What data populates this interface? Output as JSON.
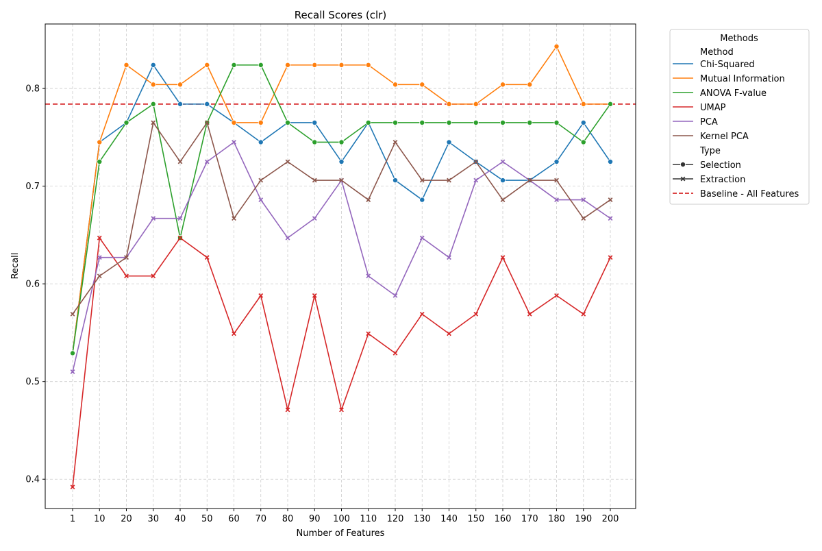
{
  "chart_data": {
    "type": "line",
    "title": "Recall Scores (clr)",
    "xlabel": "Number of Features",
    "ylabel": "Recall",
    "ylim": [
      0.37,
      0.866
    ],
    "y_ticks": [
      0.4,
      0.5,
      0.6,
      0.7,
      0.8
    ],
    "y_tick_labels": [
      "0.4",
      "0.5",
      "0.6",
      "0.7",
      "0.8"
    ],
    "categories": [
      "1",
      "10",
      "20",
      "30",
      "40",
      "50",
      "60",
      "70",
      "80",
      "90",
      "100",
      "110",
      "120",
      "130",
      "140",
      "150",
      "160",
      "170",
      "180",
      "190",
      "200"
    ],
    "grid": true,
    "legend": {
      "title": "Methods",
      "placement": "outside-right",
      "method_header": "Method",
      "type_header": "Type",
      "type_entries": [
        {
          "label": "Selection",
          "marker": "circle"
        },
        {
          "label": "Extraction",
          "marker": "x"
        }
      ]
    },
    "baseline": {
      "name": "Baseline - All Features",
      "value": 0.784,
      "color": "#d62728"
    },
    "series": [
      {
        "name": "Chi-Squared",
        "type": "Selection",
        "marker": "circle",
        "color": "#1f77b4",
        "values": [
          0.529,
          0.745,
          0.765,
          0.824,
          0.784,
          0.784,
          0.765,
          0.745,
          0.765,
          0.765,
          0.725,
          0.765,
          0.706,
          0.686,
          0.745,
          0.725,
          0.706,
          0.706,
          0.725,
          0.765,
          0.725
        ]
      },
      {
        "name": "Mutual Information",
        "type": "Selection",
        "marker": "circle",
        "color": "#ff7f0e",
        "values": [
          0.529,
          0.745,
          0.824,
          0.804,
          0.804,
          0.824,
          0.765,
          0.765,
          0.824,
          0.824,
          0.824,
          0.824,
          0.804,
          0.804,
          0.784,
          0.784,
          0.804,
          0.804,
          0.843,
          0.784,
          0.784
        ]
      },
      {
        "name": "ANOVA F-value",
        "type": "Selection",
        "marker": "circle",
        "color": "#2ca02c",
        "values": [
          0.529,
          0.725,
          0.765,
          0.784,
          0.647,
          0.765,
          0.824,
          0.824,
          0.765,
          0.745,
          0.745,
          0.765,
          0.765,
          0.765,
          0.765,
          0.765,
          0.765,
          0.765,
          0.765,
          0.745,
          0.784
        ]
      },
      {
        "name": "UMAP",
        "type": "Extraction",
        "marker": "x",
        "color": "#d62728",
        "values": [
          0.392,
          0.647,
          0.608,
          0.608,
          0.647,
          0.627,
          0.549,
          0.588,
          0.471,
          0.588,
          0.471,
          0.549,
          0.529,
          0.569,
          0.549,
          0.569,
          0.627,
          0.569,
          0.588,
          0.569,
          0.627
        ]
      },
      {
        "name": "PCA",
        "type": "Extraction",
        "marker": "x",
        "color": "#9467bd",
        "values": [
          0.51,
          0.627,
          0.627,
          0.667,
          0.667,
          0.725,
          0.745,
          0.686,
          0.647,
          0.667,
          0.706,
          0.608,
          0.588,
          0.647,
          0.627,
          0.706,
          0.725,
          0.706,
          0.686,
          0.686,
          0.667
        ]
      },
      {
        "name": "Kernel PCA",
        "type": "Extraction",
        "marker": "x",
        "color": "#8c564b",
        "values": [
          0.569,
          0.608,
          0.627,
          0.765,
          0.725,
          0.765,
          0.667,
          0.706,
          0.725,
          0.706,
          0.706,
          0.686,
          0.745,
          0.706,
          0.706,
          0.725,
          0.686,
          0.706,
          0.706,
          0.667,
          0.686
        ]
      }
    ]
  }
}
